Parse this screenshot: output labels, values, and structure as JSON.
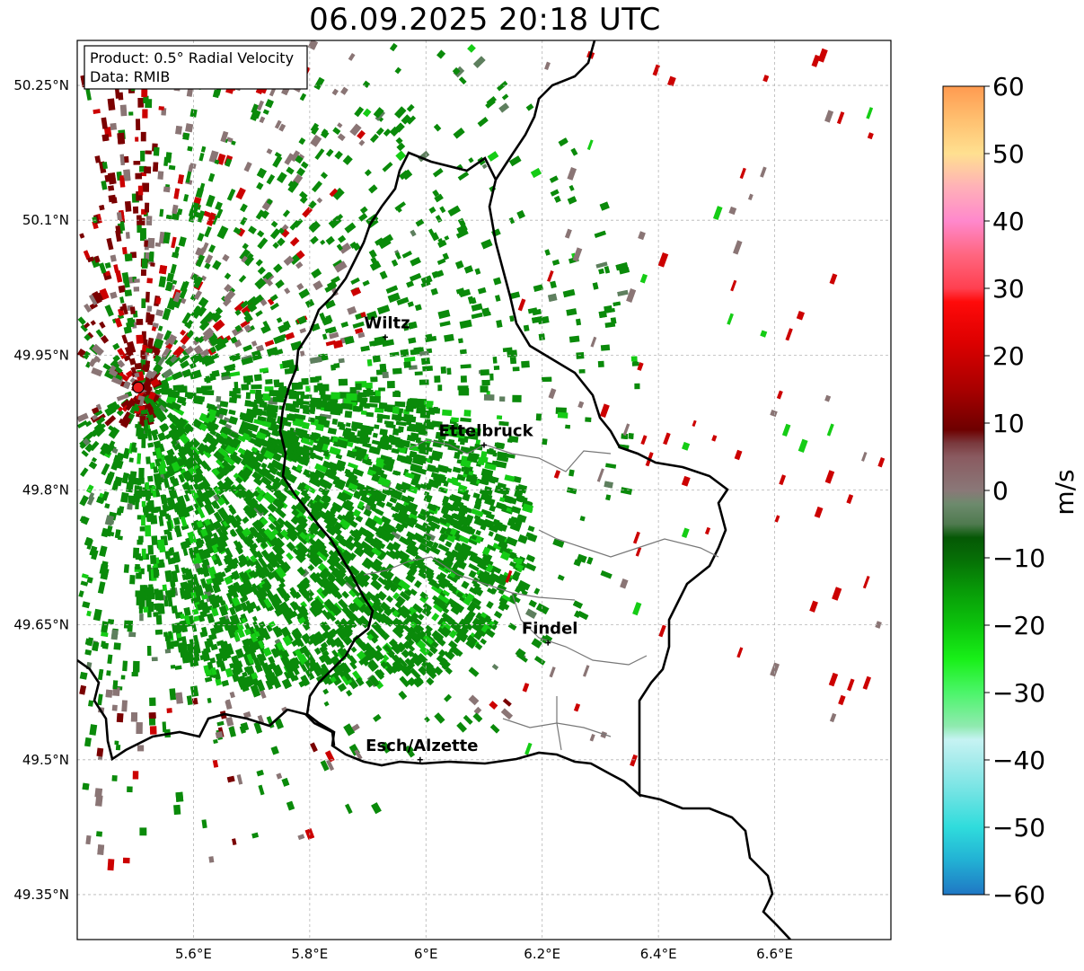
{
  "title": "06.09.2025 20:18 UTC",
  "info_box": {
    "line1": "Product: 0.5° Radial Velocity",
    "line2": "Data: RMIB"
  },
  "map": {
    "lat_ticks": [
      {
        "value": 50.25,
        "label": "50.25°N"
      },
      {
        "value": 50.1,
        "label": "50.1°N"
      },
      {
        "value": 49.95,
        "label": "49.95°N"
      },
      {
        "value": 49.8,
        "label": "49.8°N"
      },
      {
        "value": 49.65,
        "label": "49.65°N"
      },
      {
        "value": 49.5,
        "label": "49.5°N"
      },
      {
        "value": 49.35,
        "label": "49.35°N"
      }
    ],
    "lon_ticks": [
      {
        "value": 5.6,
        "label": "5.6°E"
      },
      {
        "value": 5.8,
        "label": "5.8°E"
      },
      {
        "value": 6.0,
        "label": "6°E"
      },
      {
        "value": 6.2,
        "label": "6.2°E"
      },
      {
        "value": 6.4,
        "label": "6.4°E"
      },
      {
        "value": 6.6,
        "label": "6.6°E"
      }
    ],
    "extent": {
      "lon_min": 5.4,
      "lon_max": 6.8,
      "lat_min": 49.3,
      "lat_max": 50.3
    },
    "radar_site": {
      "lon": 5.505,
      "lat": 49.914
    },
    "cities": [
      {
        "name": "Wiltz",
        "lon": 5.93,
        "lat": 49.97
      },
      {
        "name": "Ettelbruck",
        "lon": 6.1,
        "lat": 49.85
      },
      {
        "name": "Findel",
        "lon": 6.21,
        "lat": 49.63
      },
      {
        "name": "Esch/Alzette",
        "lon": 5.99,
        "lat": 49.5
      }
    ],
    "velocity_colors": {
      "strong_receding": "#7a0000",
      "receding": "#cc0000",
      "near_zero": "#8a7575",
      "near_zero_green": "#5e7f5e",
      "approaching": "#0a8a0a",
      "strong_approaching": "#15cc15"
    }
  },
  "colorbar": {
    "label": "m/s",
    "min": -60,
    "max": 60,
    "ticks": [
      {
        "value": 60,
        "label": "60"
      },
      {
        "value": 50,
        "label": "50"
      },
      {
        "value": 40,
        "label": "40"
      },
      {
        "value": 30,
        "label": "30"
      },
      {
        "value": 20,
        "label": "20"
      },
      {
        "value": 10,
        "label": "10"
      },
      {
        "value": 0,
        "label": "0"
      },
      {
        "value": -10,
        "label": "−10"
      },
      {
        "value": -20,
        "label": "−20"
      },
      {
        "value": -30,
        "label": "−30"
      },
      {
        "value": -40,
        "label": "−40"
      },
      {
        "value": -50,
        "label": "−50"
      },
      {
        "value": -60,
        "label": "−60"
      }
    ],
    "stops": [
      {
        "value": -60,
        "color": "#1f77c4"
      },
      {
        "value": -55,
        "color": "#22b0d4"
      },
      {
        "value": -50,
        "color": "#2fdcdc"
      },
      {
        "value": -45,
        "color": "#6fe3e3"
      },
      {
        "value": -40,
        "color": "#a8ecec"
      },
      {
        "value": -37,
        "color": "#c6f3f3"
      },
      {
        "value": -35,
        "color": "#90eab0"
      },
      {
        "value": -30,
        "color": "#4cf56a"
      },
      {
        "value": -25,
        "color": "#18f018"
      },
      {
        "value": -20,
        "color": "#0cc40c"
      },
      {
        "value": -15,
        "color": "#089c08"
      },
      {
        "value": -10,
        "color": "#066d06"
      },
      {
        "value": -7,
        "color": "#055805"
      },
      {
        "value": -5,
        "color": "#4f7a4f"
      },
      {
        "value": -2,
        "color": "#6d8a6d"
      },
      {
        "value": 0,
        "color": "#8a7878"
      },
      {
        "value": 5,
        "color": "#8a5a60"
      },
      {
        "value": 7,
        "color": "#7a3a3e"
      },
      {
        "value": 9,
        "color": "#6e0000"
      },
      {
        "value": 15,
        "color": "#a80000"
      },
      {
        "value": 22,
        "color": "#dd0000"
      },
      {
        "value": 28,
        "color": "#ff0a0a"
      },
      {
        "value": 30,
        "color": "#ff4050"
      },
      {
        "value": 35,
        "color": "#ff6680"
      },
      {
        "value": 40,
        "color": "#ff88cc"
      },
      {
        "value": 45,
        "color": "#ffb0b8"
      },
      {
        "value": 50,
        "color": "#ffe090"
      },
      {
        "value": 55,
        "color": "#ffc070"
      },
      {
        "value": 60,
        "color": "#ff9a50"
      }
    ]
  }
}
